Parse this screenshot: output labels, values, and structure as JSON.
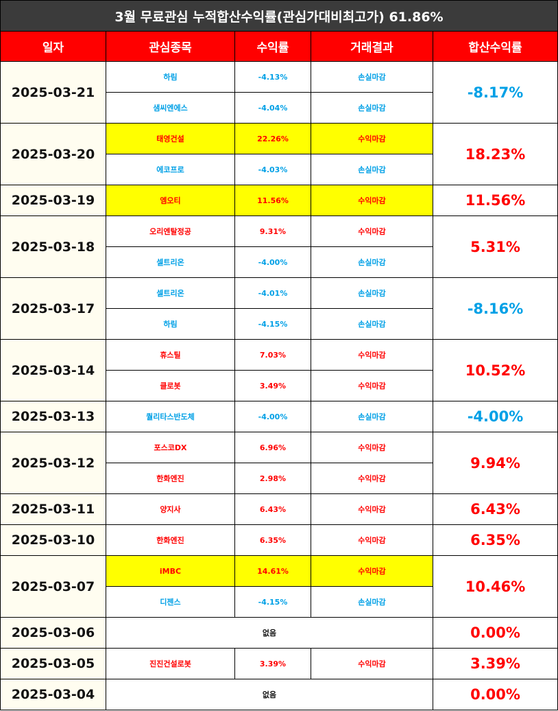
{
  "title": "3월 무료관심 누적합산수익률(관심가대비최고가) 61.86%",
  "headers": [
    "일자",
    "관심종목",
    "수익률",
    "거래결과",
    "합산수익률"
  ],
  "rows": [
    {
      "date": "2025-03-21",
      "total": "-8.17%",
      "total_type": "loss",
      "trades": [
        {
          "stock": "하림",
          "rate": "-4.13%",
          "result": "손실마감",
          "type": "loss",
          "highlight": false
        },
        {
          "stock": "샘씨엔에스",
          "rate": "-4.04%",
          "result": "손실마감",
          "type": "loss",
          "highlight": false
        }
      ]
    },
    {
      "date": "2025-03-20",
      "total": "18.23%",
      "total_type": "profit",
      "trades": [
        {
          "stock": "태영건설",
          "rate": "22.26%",
          "result": "수익마감",
          "type": "profit",
          "highlight": true
        },
        {
          "stock": "에코프로",
          "rate": "-4.03%",
          "result": "손실마감",
          "type": "loss",
          "highlight": false
        }
      ]
    },
    {
      "date": "2025-03-19",
      "total": "11.56%",
      "total_type": "profit",
      "trades": [
        {
          "stock": "엠오티",
          "rate": "11.56%",
          "result": "수익마감",
          "type": "profit",
          "highlight": true
        }
      ]
    },
    {
      "date": "2025-03-18",
      "total": "5.31%",
      "total_type": "profit",
      "trades": [
        {
          "stock": "오리엔탈정공",
          "rate": "9.31%",
          "result": "수익마감",
          "type": "profit",
          "highlight": false
        },
        {
          "stock": "셀트리온",
          "rate": "-4.00%",
          "result": "손실마감",
          "type": "loss",
          "highlight": false
        }
      ]
    },
    {
      "date": "2025-03-17",
      "total": "-8.16%",
      "total_type": "loss",
      "trades": [
        {
          "stock": "셀트리온",
          "rate": "-4.01%",
          "result": "손실마감",
          "type": "loss",
          "highlight": false
        },
        {
          "stock": "하림",
          "rate": "-4.15%",
          "result": "손실마감",
          "type": "loss",
          "highlight": false
        }
      ]
    },
    {
      "date": "2025-03-14",
      "total": "10.52%",
      "total_type": "profit",
      "trades": [
        {
          "stock": "휴스틸",
          "rate": "7.03%",
          "result": "수익마감",
          "type": "profit",
          "highlight": false
        },
        {
          "stock": "클로봇",
          "rate": "3.49%",
          "result": "수익마감",
          "type": "profit",
          "highlight": false
        }
      ]
    },
    {
      "date": "2025-03-13",
      "total": "-4.00%",
      "total_type": "loss",
      "trades": [
        {
          "stock": "퀄리타스반도체",
          "rate": "-4.00%",
          "result": "손실마감",
          "type": "loss",
          "highlight": false
        }
      ]
    },
    {
      "date": "2025-03-12",
      "total": "9.94%",
      "total_type": "profit",
      "trades": [
        {
          "stock": "포스코DX",
          "rate": "6.96%",
          "result": "수익마감",
          "type": "profit",
          "highlight": false
        },
        {
          "stock": "한화엔진",
          "rate": "2.98%",
          "result": "수익마감",
          "type": "profit",
          "highlight": false
        }
      ]
    },
    {
      "date": "2025-03-11",
      "total": "6.43%",
      "total_type": "profit",
      "trades": [
        {
          "stock": "양지사",
          "rate": "6.43%",
          "result": "수익마감",
          "type": "profit",
          "highlight": false
        }
      ]
    },
    {
      "date": "2025-03-10",
      "total": "6.35%",
      "total_type": "profit",
      "trades": [
        {
          "stock": "한화엔진",
          "rate": "6.35%",
          "result": "수익마감",
          "type": "profit",
          "highlight": false
        }
      ]
    },
    {
      "date": "2025-03-07",
      "total": "10.46%",
      "total_type": "profit",
      "trades": [
        {
          "stock": "iMBC",
          "rate": "14.61%",
          "result": "수익마감",
          "type": "profit",
          "highlight": true
        },
        {
          "stock": "디젠스",
          "rate": "-4.15%",
          "result": "손실마감",
          "type": "loss",
          "highlight": false
        }
      ]
    },
    {
      "date": "2025-03-06",
      "total": "0.00%",
      "total_type": "profit",
      "none_text": "없음",
      "trades": []
    },
    {
      "date": "2025-03-05",
      "total": "3.39%",
      "total_type": "profit",
      "trades": [
        {
          "stock": "진진건설로봇",
          "rate": "3.39%",
          "result": "수익마감",
          "type": "profit",
          "highlight": false
        }
      ]
    },
    {
      "date": "2025-03-04",
      "total": "0.00%",
      "total_type": "profit",
      "none_text": "없음",
      "trades": []
    }
  ],
  "colors": {
    "profit": "#ff0000",
    "loss": "#00a0e6",
    "header_bg": "#ff0000",
    "title_bg": "#3b3b3b",
    "highlight": "#ffff00"
  }
}
